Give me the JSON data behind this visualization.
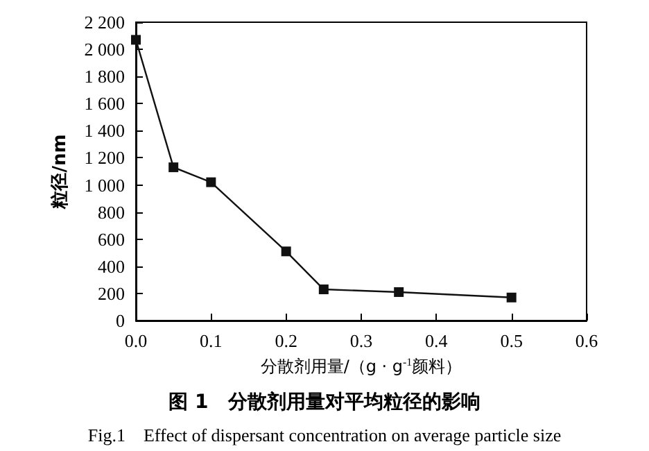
{
  "chart_data": {
    "type": "line",
    "title": "图 1　分散剂用量对平均粒径的影响",
    "subtitle": "Fig.1　Effect of dispersant concentration on average particle size",
    "xlabel": "分散剂用量/（g · g$^{-1}$颜料）",
    "ylabel": "粒径/nm",
    "x": [
      0,
      0.05,
      0.1,
      0.2,
      0.25,
      0.35,
      0.5
    ],
    "series": [
      {
        "color": "#111111",
        "values": [
          2070,
          1130,
          1020,
          510,
          230,
          210,
          170
        ]
      }
    ],
    "xlim": [
      0,
      0.6
    ],
    "xticks": [
      {
        "value": 0,
        "label": "0.0"
      },
      0.1,
      0.2,
      0.3,
      0.4,
      0.5,
      0.6
    ],
    "ylim": [
      0,
      2200
    ],
    "yticks": [
      0,
      200,
      400,
      600,
      800,
      {
        "value": 1000,
        "label": "1 000"
      },
      {
        "value": 1200,
        "label": "1 200"
      },
      {
        "value": 1400,
        "label": "1 400"
      },
      {
        "value": 1600,
        "label": "1 600"
      },
      {
        "value": 1800,
        "label": "1 800"
      },
      {
        "value": 2000,
        "label": "2 000"
      },
      {
        "value": 2200,
        "label": "2 200"
      }
    ],
    "marker": "square",
    "line_style": "solid",
    "grid": false
  }
}
